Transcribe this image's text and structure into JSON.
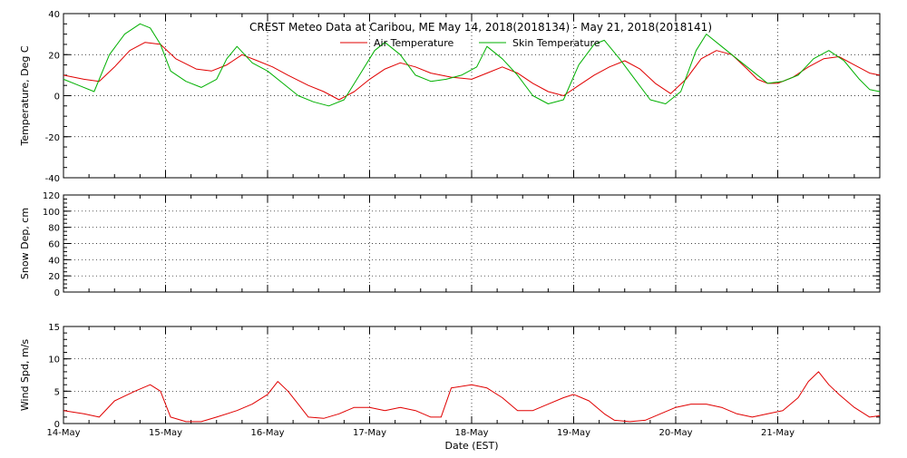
{
  "chart_data": [
    {
      "type": "line",
      "panel": "temperature",
      "title": "CREST Meteo Data at Caribou, ME   May 14, 2018(2018134) - May 21, 2018(2018141)",
      "ylabel": "Temperature, Deg C",
      "ylim": [
        -40,
        40
      ],
      "yticks": [
        -40,
        -20,
        0,
        20,
        40
      ],
      "grid": true,
      "legend_position": "top-center",
      "series": [
        {
          "name": "Air Temperature",
          "color": "#e00000",
          "points": [
            [
              0,
              10
            ],
            [
              0.2,
              8
            ],
            [
              0.35,
              7
            ],
            [
              0.5,
              14
            ],
            [
              0.65,
              22
            ],
            [
              0.8,
              26
            ],
            [
              0.95,
              25
            ],
            [
              1.1,
              18
            ],
            [
              1.3,
              13
            ],
            [
              1.45,
              12
            ],
            [
              1.6,
              15
            ],
            [
              1.75,
              20
            ],
            [
              1.9,
              17
            ],
            [
              2.05,
              14
            ],
            [
              2.2,
              10
            ],
            [
              2.4,
              5
            ],
            [
              2.55,
              2
            ],
            [
              2.7,
              -2
            ],
            [
              2.85,
              2
            ],
            [
              3.0,
              8
            ],
            [
              3.15,
              13
            ],
            [
              3.3,
              16
            ],
            [
              3.45,
              14
            ],
            [
              3.6,
              11
            ],
            [
              3.8,
              9
            ],
            [
              4.0,
              8
            ],
            [
              4.15,
              11
            ],
            [
              4.3,
              14
            ],
            [
              4.45,
              11
            ],
            [
              4.6,
              6
            ],
            [
              4.75,
              2
            ],
            [
              4.9,
              0
            ],
            [
              5.05,
              5
            ],
            [
              5.2,
              10
            ],
            [
              5.35,
              14
            ],
            [
              5.5,
              17
            ],
            [
              5.65,
              13
            ],
            [
              5.8,
              6
            ],
            [
              5.95,
              1
            ],
            [
              6.1,
              8
            ],
            [
              6.25,
              18
            ],
            [
              6.4,
              22
            ],
            [
              6.55,
              20
            ],
            [
              6.7,
              13
            ],
            [
              6.8,
              8
            ],
            [
              6.9,
              6
            ],
            [
              7.0,
              6
            ],
            [
              7.15,
              9
            ],
            [
              7.3,
              14
            ],
            [
              7.45,
              18
            ],
            [
              7.6,
              19
            ],
            [
              7.75,
              15
            ],
            [
              7.9,
              11
            ],
            [
              8.0,
              10
            ]
          ]
        },
        {
          "name": "Skin Temperature",
          "color": "#00b000",
          "points": [
            [
              0,
              8
            ],
            [
              0.15,
              5
            ],
            [
              0.3,
              2
            ],
            [
              0.45,
              20
            ],
            [
              0.6,
              30
            ],
            [
              0.75,
              35
            ],
            [
              0.85,
              33
            ],
            [
              0.95,
              25
            ],
            [
              1.05,
              12
            ],
            [
              1.2,
              7
            ],
            [
              1.35,
              4
            ],
            [
              1.5,
              8
            ],
            [
              1.6,
              18
            ],
            [
              1.7,
              24
            ],
            [
              1.85,
              16
            ],
            [
              2.0,
              12
            ],
            [
              2.15,
              6
            ],
            [
              2.3,
              0
            ],
            [
              2.45,
              -3
            ],
            [
              2.6,
              -5
            ],
            [
              2.75,
              -2
            ],
            [
              2.9,
              10
            ],
            [
              3.05,
              22
            ],
            [
              3.15,
              26
            ],
            [
              3.3,
              20
            ],
            [
              3.45,
              10
            ],
            [
              3.6,
              7
            ],
            [
              3.75,
              8
            ],
            [
              3.9,
              10
            ],
            [
              4.05,
              14
            ],
            [
              4.15,
              24
            ],
            [
              4.3,
              18
            ],
            [
              4.45,
              10
            ],
            [
              4.6,
              0
            ],
            [
              4.75,
              -4
            ],
            [
              4.9,
              -2
            ],
            [
              5.05,
              15
            ],
            [
              5.2,
              25
            ],
            [
              5.3,
              27
            ],
            [
              5.45,
              18
            ],
            [
              5.6,
              8
            ],
            [
              5.75,
              -2
            ],
            [
              5.9,
              -4
            ],
            [
              6.05,
              2
            ],
            [
              6.2,
              22
            ],
            [
              6.3,
              30
            ],
            [
              6.45,
              24
            ],
            [
              6.6,
              18
            ],
            [
              6.75,
              12
            ],
            [
              6.9,
              6
            ],
            [
              7.05,
              7
            ],
            [
              7.2,
              10
            ],
            [
              7.35,
              18
            ],
            [
              7.5,
              22
            ],
            [
              7.65,
              17
            ],
            [
              7.8,
              8
            ],
            [
              7.9,
              3
            ],
            [
              8.0,
              2
            ]
          ]
        }
      ]
    },
    {
      "type": "line",
      "panel": "snow",
      "ylabel": "Snow Dep, cm",
      "ylim": [
        0,
        120
      ],
      "yticks": [
        0,
        20,
        40,
        60,
        80,
        100,
        120
      ],
      "grid": true,
      "series": []
    },
    {
      "type": "line",
      "panel": "wind",
      "xlabel": "Date (EST)",
      "ylabel": "Wind Spd, m/s",
      "ylim": [
        0,
        15
      ],
      "yticks": [
        0,
        5,
        10,
        15
      ],
      "grid": true,
      "series": [
        {
          "color": "#e00000",
          "points": [
            [
              0,
              2
            ],
            [
              0.2,
              1.5
            ],
            [
              0.35,
              1
            ],
            [
              0.5,
              3.5
            ],
            [
              0.7,
              5
            ],
            [
              0.85,
              6
            ],
            [
              0.95,
              5
            ],
            [
              1.05,
              1
            ],
            [
              1.2,
              0.3
            ],
            [
              1.35,
              0.3
            ],
            [
              1.5,
              1
            ],
            [
              1.7,
              2
            ],
            [
              1.85,
              3
            ],
            [
              2.0,
              4.5
            ],
            [
              2.1,
              6.5
            ],
            [
              2.2,
              5
            ],
            [
              2.3,
              3
            ],
            [
              2.4,
              1
            ],
            [
              2.55,
              0.8
            ],
            [
              2.7,
              1.5
            ],
            [
              2.85,
              2.5
            ],
            [
              3.0,
              2.5
            ],
            [
              3.15,
              2
            ],
            [
              3.3,
              2.5
            ],
            [
              3.45,
              2
            ],
            [
              3.6,
              1
            ],
            [
              3.7,
              1
            ],
            [
              3.8,
              5.5
            ],
            [
              4.0,
              6
            ],
            [
              4.15,
              5.5
            ],
            [
              4.3,
              4
            ],
            [
              4.45,
              2
            ],
            [
              4.6,
              2
            ],
            [
              4.75,
              3
            ],
            [
              4.9,
              4
            ],
            [
              5.0,
              4.5
            ],
            [
              5.15,
              3.5
            ],
            [
              5.3,
              1.5
            ],
            [
              5.4,
              0.5
            ],
            [
              5.55,
              0.3
            ],
            [
              5.7,
              0.5
            ],
            [
              5.85,
              1.5
            ],
            [
              6.0,
              2.5
            ],
            [
              6.15,
              3
            ],
            [
              6.3,
              3
            ],
            [
              6.45,
              2.5
            ],
            [
              6.6,
              1.5
            ],
            [
              6.75,
              1
            ],
            [
              6.9,
              1.5
            ],
            [
              7.05,
              2
            ],
            [
              7.2,
              4
            ],
            [
              7.3,
              6.5
            ],
            [
              7.4,
              8
            ],
            [
              7.5,
              6
            ],
            [
              7.6,
              4.5
            ],
            [
              7.75,
              2.5
            ],
            [
              7.9,
              1
            ],
            [
              8.0,
              1.2
            ]
          ]
        }
      ]
    }
  ],
  "x_axis": {
    "label": "Date (EST)",
    "range": [
      0,
      8
    ],
    "tick_labels": [
      "14-May",
      "15-May",
      "16-May",
      "17-May",
      "18-May",
      "19-May",
      "20-May",
      "21-May"
    ]
  }
}
